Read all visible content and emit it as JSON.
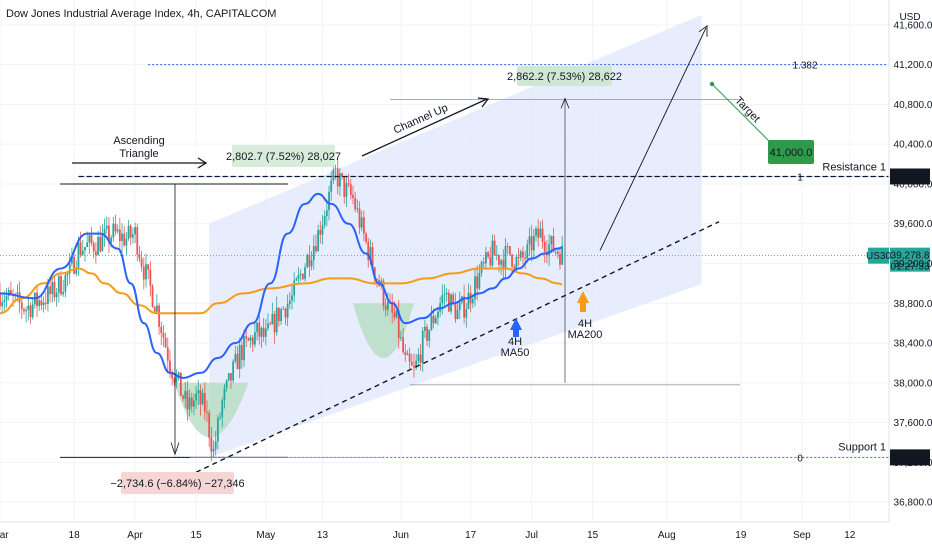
{
  "header": {
    "title": "Dow Jones Industrial Average Index, 4h, CAPITALCOM",
    "currency": "USD"
  },
  "colors": {
    "up": "#26a69a",
    "down": "#ef5350",
    "ma50": "#2962ff",
    "ma200": "#f59b1c",
    "channel": "#dfe7fb",
    "fib": "#2962ff",
    "green_box": "#2e9a4a"
  },
  "chart_data": {
    "type": "candlestick",
    "title": "Dow Jones Industrial Average Index, 4h, CAPITALCOM",
    "y_ticks": [
      36800,
      37200,
      37600,
      38000,
      38400,
      38800,
      39200,
      39600,
      40000,
      40400,
      40800,
      41200,
      41600
    ],
    "y_tick_labels": [
      "36,800.0",
      "37,200.0",
      "37,600.0",
      "38,000.0",
      "38,400.0",
      "38,800.0",
      "39,200.0",
      "39,600.0",
      "40,000.0",
      "40,400.0",
      "40,800.0",
      "41,200.0",
      "41,600.0"
    ],
    "ylim": [
      36600,
      41850
    ],
    "x_ticks": [
      "Mar",
      "18",
      "Apr",
      "15",
      "May",
      "13",
      "Jun",
      "17",
      "Jul",
      "15",
      "Aug",
      "19",
      "Sep",
      "12"
    ],
    "x_tick_days": [
      0,
      17,
      31,
      45,
      61,
      74,
      92,
      108,
      122,
      136,
      153,
      170,
      184,
      195
    ],
    "price_path": [
      [
        0,
        38900
      ],
      [
        6,
        38750
      ],
      [
        12,
        38900
      ],
      [
        16,
        39100
      ],
      [
        18,
        39350
      ],
      [
        22,
        39400
      ],
      [
        26,
        39500
      ],
      [
        29,
        39450
      ],
      [
        31,
        39500
      ],
      [
        33,
        39150
      ],
      [
        36,
        38750
      ],
      [
        39,
        38200
      ],
      [
        43,
        37750
      ],
      [
        45,
        37850
      ],
      [
        47,
        37750
      ],
      [
        49,
        37300
      ],
      [
        51,
        37800
      ],
      [
        55,
        38300
      ],
      [
        59,
        38500
      ],
      [
        61,
        38450
      ],
      [
        64,
        38700
      ],
      [
        67,
        38850
      ],
      [
        70,
        39200
      ],
      [
        73,
        39500
      ],
      [
        75,
        39800
      ],
      [
        77,
        40100
      ],
      [
        79,
        39950
      ],
      [
        81,
        39850
      ],
      [
        84,
        39400
      ],
      [
        87,
        39000
      ],
      [
        89,
        38750
      ],
      [
        91,
        38600
      ],
      [
        93,
        38200
      ],
      [
        95,
        38100
      ],
      [
        97,
        38400
      ],
      [
        100,
        38700
      ],
      [
        102,
        38900
      ],
      [
        105,
        38700
      ],
      [
        107,
        38800
      ],
      [
        109,
        39000
      ],
      [
        111,
        39150
      ],
      [
        113,
        39300
      ],
      [
        115,
        39250
      ],
      [
        117,
        39300
      ],
      [
        119,
        39200
      ],
      [
        121,
        39300
      ],
      [
        122,
        39400
      ],
      [
        124,
        39500
      ],
      [
        126,
        39380
      ],
      [
        128,
        39330
      ],
      [
        129,
        39300
      ]
    ],
    "series": [
      {
        "name": "4H MA50",
        "values": [
          [
            0,
            38900
          ],
          [
            8,
            38850
          ],
          [
            14,
            39150
          ],
          [
            20,
            39500
          ],
          [
            23,
            39500
          ],
          [
            27,
            39350
          ],
          [
            30,
            39000
          ],
          [
            33,
            38600
          ],
          [
            36,
            38300
          ],
          [
            39,
            38100
          ],
          [
            42,
            38050
          ],
          [
            46,
            38100
          ],
          [
            50,
            38250
          ],
          [
            54,
            38400
          ],
          [
            58,
            38600
          ],
          [
            62,
            39000
          ],
          [
            66,
            39500
          ],
          [
            70,
            39800
          ],
          [
            73,
            39900
          ],
          [
            76,
            39800
          ],
          [
            80,
            39600
          ],
          [
            84,
            39300
          ],
          [
            87,
            39000
          ],
          [
            90,
            38800
          ],
          [
            93,
            38600
          ],
          [
            97,
            38650
          ],
          [
            101,
            38750
          ],
          [
            104,
            38800
          ],
          [
            107,
            38850
          ],
          [
            110,
            38900
          ],
          [
            113,
            38950
          ],
          [
            116,
            39050
          ],
          [
            119,
            39150
          ],
          [
            122,
            39250
          ],
          [
            125,
            39300
          ],
          [
            128,
            39350
          ],
          [
            129,
            39360
          ]
        ]
      },
      {
        "name": "4H MA200",
        "values": [
          [
            0,
            38700
          ],
          [
            5,
            38850
          ],
          [
            10,
            39000
          ],
          [
            14,
            39100
          ],
          [
            18,
            39150
          ],
          [
            21,
            39100
          ],
          [
            24,
            39000
          ],
          [
            28,
            38900
          ],
          [
            32,
            38780
          ],
          [
            36,
            38700
          ],
          [
            40,
            38700
          ],
          [
            46,
            38700
          ],
          [
            50,
            38800
          ],
          [
            56,
            38900
          ],
          [
            62,
            38950
          ],
          [
            70,
            39000
          ],
          [
            76,
            39050
          ],
          [
            80,
            39050
          ],
          [
            86,
            39000
          ],
          [
            92,
            39000
          ],
          [
            98,
            39050
          ],
          [
            104,
            39100
          ],
          [
            110,
            39150
          ],
          [
            116,
            39150
          ],
          [
            120,
            39100
          ],
          [
            124,
            39050
          ],
          [
            128,
            39000
          ],
          [
            129,
            38990
          ]
        ]
      }
    ],
    "annotations": {
      "ascending_triangle": "Ascending\nTriangle",
      "channel_up": "Channel Up",
      "target": "Target",
      "ma50_label": "4H\nMA50",
      "ma200_label": "4H\nMA200",
      "measure_1": "2,802.7 (7.52%) 28,027",
      "measure_2": "2,862.2 (7.53%) 28,622",
      "measure_3": "−2,734.6 (−6.84%) −27,346",
      "target_price": "41,000.0",
      "fib_1382": "1.382",
      "fib_1": "1",
      "fib_0": "0"
    },
    "levels": {
      "resistance_1": {
        "label": "Resistance 1",
        "value": 40075,
        "value_label": "40,075.0"
      },
      "support_1": {
        "label": "Support 1",
        "value": 37250,
        "value_label": "37,250.0"
      },
      "fib_1382_value": 41200,
      "current": {
        "symbol": "US30",
        "value": 39278.8,
        "value_label": "39,278.8",
        "countdown": "01:27:33"
      }
    }
  }
}
